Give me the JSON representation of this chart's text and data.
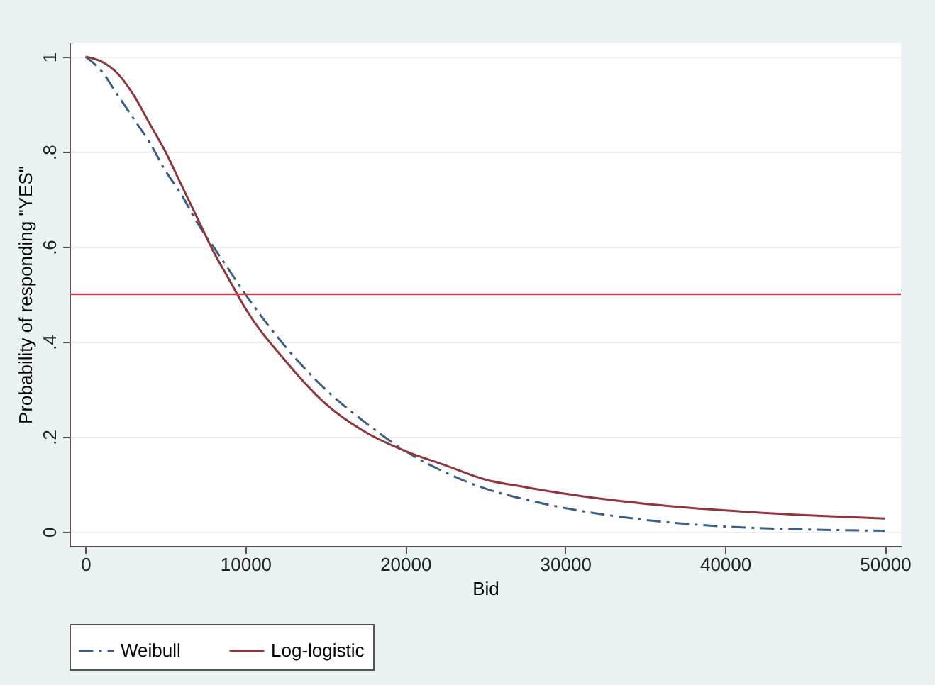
{
  "chart_data": {
    "type": "line",
    "xlabel": "Bid",
    "ylabel": "Probability of responding \"YES\"",
    "x": [
      0,
      1000,
      2000,
      3000,
      4000,
      5000,
      6000,
      7000,
      8000,
      9000,
      10000,
      12500,
      15000,
      17500,
      20000,
      22500,
      25000,
      27500,
      30000,
      35000,
      40000,
      45000,
      50000
    ],
    "series": [
      {
        "name": "Weibull",
        "color": "#3a5f86",
        "line_style": "dashed",
        "values": [
          1.0,
          0.97,
          0.92,
          0.87,
          0.82,
          0.76,
          0.71,
          0.65,
          0.6,
          0.55,
          0.5,
          0.39,
          0.3,
          0.23,
          0.17,
          0.125,
          0.091,
          0.068,
          0.05,
          0.025,
          0.011,
          0.005,
          0.002
        ]
      },
      {
        "name": "Log-logistic",
        "color": "#90353b",
        "line_style": "solid",
        "values": [
          1.0,
          0.99,
          0.965,
          0.92,
          0.86,
          0.8,
          0.73,
          0.66,
          0.59,
          0.53,
          0.47,
          0.36,
          0.27,
          0.21,
          0.17,
          0.14,
          0.11,
          0.094,
          0.08,
          0.059,
          0.045,
          0.035,
          0.028
        ]
      }
    ],
    "xlim": [
      -1000,
      51000
    ],
    "xticks": [
      0,
      10000,
      20000,
      30000,
      40000,
      50000
    ],
    "ylim": [
      -0.03,
      1.03
    ],
    "yticks": [
      0,
      {
        "value": 0.2,
        "label": ".2"
      },
      {
        "value": 0.4,
        "label": ".4"
      },
      {
        "value": 0.6,
        "label": ".6"
      },
      {
        "value": 0.8,
        "label": ".8"
      },
      1
    ],
    "ref_lines": [
      {
        "axis": "y",
        "value": 0.5,
        "color": "#c0404f"
      }
    ],
    "grid": "y",
    "legend": "bottom",
    "marker": "none"
  }
}
